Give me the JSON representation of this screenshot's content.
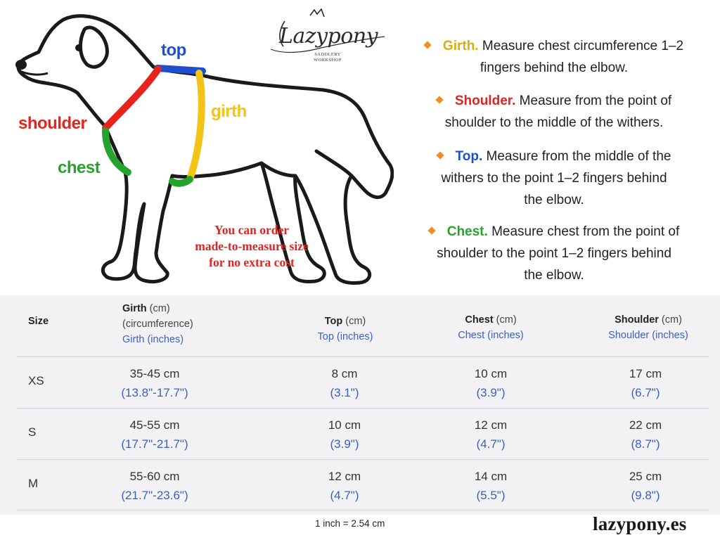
{
  "brand": {
    "logo_word": "Lazypony",
    "logo_sub_line1": "SADDLERY",
    "logo_sub_line2": "WORKSHOP",
    "website": "lazypony.es"
  },
  "colors": {
    "top": "#1f4fcf",
    "girth": "#f2c417",
    "shoulder": "#e8231c",
    "chest": "#26a32d",
    "bullet": "#ef8f25",
    "inches_text": "#3b60c4",
    "promo_text": "#e02424",
    "term_girth": "#d9ad10",
    "term_shoulder": "#e02424",
    "term_top": "#1f4fcf",
    "term_chest": "#26a32d"
  },
  "diagram_labels": {
    "top": "top",
    "girth": "girth",
    "shoulder": "shoulder",
    "chest": "chest"
  },
  "promo": {
    "line1": "You can order",
    "line2": "made-to-measure size",
    "line3": "for no extra cost"
  },
  "instructions": [
    {
      "term": "Girth.",
      "lines": [
        "Measure chest circumference 1–2",
        "fingers behind the elbow."
      ]
    },
    {
      "term": "Shoulder.",
      "lines": [
        "Measure from the point of",
        "shoulder to the middle of the withers."
      ]
    },
    {
      "term": "Top.",
      "lines": [
        "Measure from the middle of the",
        "withers to the point 1–2 fingers behind",
        "the elbow."
      ]
    },
    {
      "term": "Chest.",
      "lines": [
        "Measure chest from the point of",
        "shoulder to the point 1–2 fingers behind",
        "the elbow."
      ]
    }
  ],
  "table": {
    "headers": {
      "size": "Size",
      "girth_bold": "Girth",
      "girth_unit": " (cm)",
      "girth_sub": "(circumference)",
      "girth_in": "Girth (inches)",
      "top_bold": "Top",
      "top_unit": " (cm)",
      "top_in": "Top (inches)",
      "chest_bold": "Chest",
      "chest_unit": " (cm)",
      "chest_in": "Chest (inches)",
      "shoulder_bold": "Shoulder",
      "shoulder_unit": " (cm)",
      "shoulder_in": "Shoulder (inches)"
    },
    "rows": [
      {
        "size": "XS",
        "girth_cm": "35-45 cm",
        "girth_in": "(13.8\"-17.7\")",
        "top_cm": "8 cm",
        "top_in": "(3.1\")",
        "chest_cm": "10 cm",
        "chest_in": "(3.9\")",
        "shoulder_cm": "17 cm",
        "shoulder_in": "(6.7\")"
      },
      {
        "size": "S",
        "girth_cm": "45-55 cm",
        "girth_in": "(17.7\"-21.7\")",
        "top_cm": "10 cm",
        "top_in": "(3.9\")",
        "chest_cm": "12 cm",
        "chest_in": "(4.7\")",
        "shoulder_cm": "22 cm",
        "shoulder_in": "(8.7\")"
      },
      {
        "size": "M",
        "girth_cm": "55-60 cm",
        "girth_in": "(21.7\"-23.6\")",
        "top_cm": "12 cm",
        "top_in": "(4.7\")",
        "chest_cm": "14 cm",
        "chest_in": "(5.5\")",
        "shoulder_cm": "25 cm",
        "shoulder_in": "(9.8\")"
      }
    ],
    "footnote": "1 inch = 2.54 cm"
  }
}
